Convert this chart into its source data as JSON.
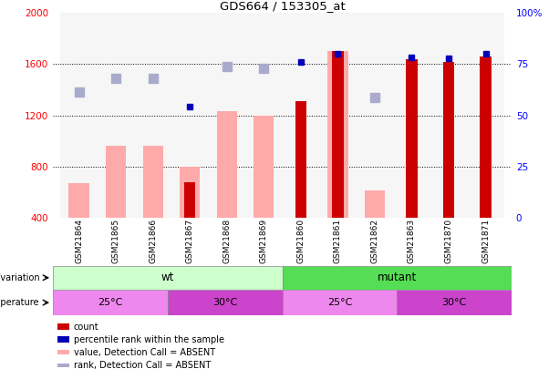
{
  "title": "GDS664 / 153305_at",
  "samples": [
    "GSM21864",
    "GSM21865",
    "GSM21866",
    "GSM21867",
    "GSM21868",
    "GSM21869",
    "GSM21860",
    "GSM21861",
    "GSM21862",
    "GSM21863",
    "GSM21870",
    "GSM21871"
  ],
  "count": [
    null,
    null,
    null,
    680,
    null,
    null,
    1310,
    1700,
    null,
    1640,
    1620,
    1660
  ],
  "percentile_rank": [
    null,
    null,
    null,
    1270,
    null,
    null,
    1620,
    1680,
    null,
    1650,
    1645,
    1680
  ],
  "value_absent": [
    670,
    960,
    960,
    800,
    1230,
    1200,
    null,
    1700,
    610,
    null,
    null,
    null
  ],
  "rank_absent": [
    1380,
    1490,
    1490,
    null,
    1580,
    1570,
    null,
    null,
    1340,
    null,
    null,
    null
  ],
  "ylim_left": [
    400,
    2000
  ],
  "ylim_right": [
    0,
    100
  ],
  "yticks_left": [
    400,
    800,
    1200,
    1600,
    2000
  ],
  "yticks_right": [
    0,
    25,
    50,
    75,
    100
  ],
  "grid_values": [
    800,
    1200,
    1600
  ],
  "color_count": "#cc0000",
  "color_rank": "#0000bb",
  "color_value_absent": "#ffaaaa",
  "color_rank_absent": "#aaaacc",
  "color_wt_light": "#ccffcc",
  "color_wt_dark": "#99ee99",
  "color_mutant": "#55dd55",
  "color_temp_25": "#ee88ee",
  "color_temp_30": "#cc44cc",
  "bar_width": 0.55,
  "wt_samples": 6,
  "mutant_samples": 6
}
